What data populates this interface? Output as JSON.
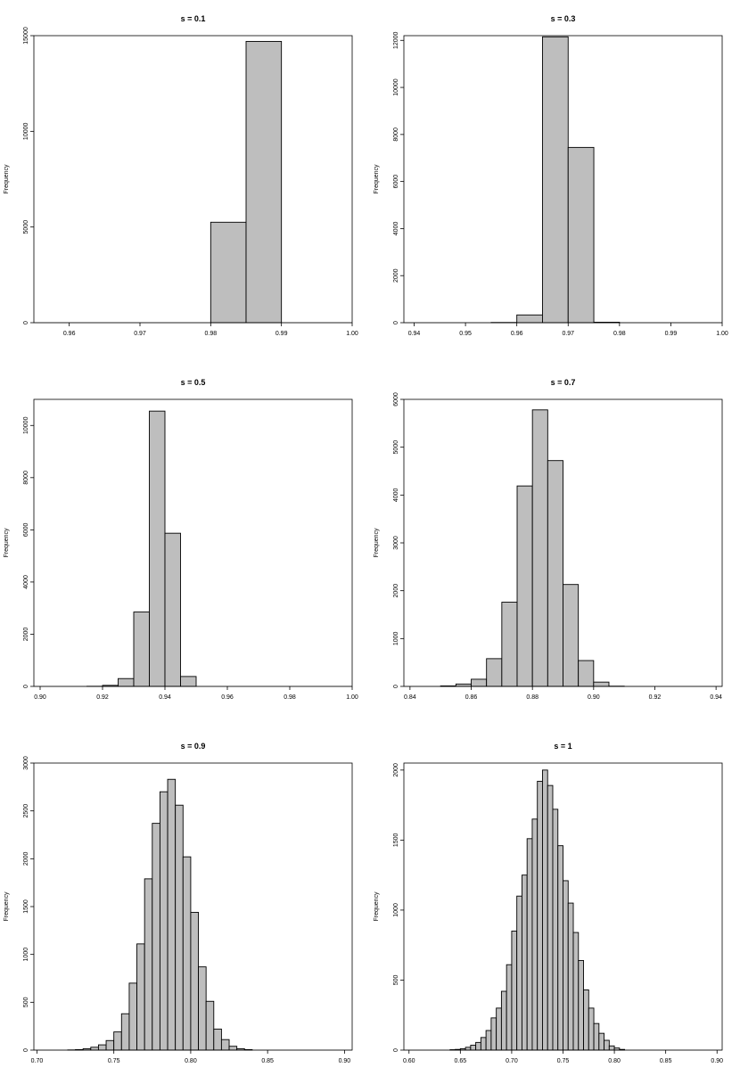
{
  "chart_data": [
    {
      "type": "bar",
      "title": "s = 0.1",
      "ylabel": "Frequency",
      "xlim": [
        0.955,
        1.0
      ],
      "ylim": [
        0,
        15000
      ],
      "xticks": [
        0.96,
        0.97,
        0.98,
        0.99,
        1.0
      ],
      "xtick_labels": [
        "0.96",
        "0.97",
        "0.98",
        "0.99",
        "1.00"
      ],
      "yticks": [
        0,
        5000,
        10000,
        15000
      ],
      "ytick_labels": [
        "0",
        "5000",
        "10000",
        "15000"
      ],
      "bin_width": 0.005,
      "bins": [
        [
          0.98,
          0.985
        ],
        [
          0.985,
          0.99
        ]
      ],
      "values": [
        5250,
        14700
      ]
    },
    {
      "type": "bar",
      "title": "s = 0.3",
      "ylabel": "Frequency",
      "xlim": [
        0.938,
        1.0
      ],
      "ylim": [
        0,
        12200
      ],
      "xticks": [
        0.94,
        0.95,
        0.96,
        0.97,
        0.98,
        0.99,
        1.0
      ],
      "xtick_labels": [
        "0.94",
        "0.95",
        "0.96",
        "0.97",
        "0.98",
        "0.99",
        "1.00"
      ],
      "yticks": [
        0,
        2000,
        4000,
        6000,
        8000,
        10000,
        12000
      ],
      "ytick_labels": [
        "0",
        "2000",
        "4000",
        "6000",
        "8000",
        "10000",
        "12000"
      ],
      "bin_width": 0.005,
      "bins": [
        [
          0.955,
          0.96
        ],
        [
          0.96,
          0.965
        ],
        [
          0.965,
          0.97
        ],
        [
          0.97,
          0.975
        ],
        [
          0.975,
          0.98
        ]
      ],
      "values": [
        10,
        330,
        12150,
        7450,
        20
      ]
    },
    {
      "type": "bar",
      "title": "s = 0.5",
      "ylabel": "Frequency",
      "xlim": [
        0.898,
        1.0
      ],
      "ylim": [
        0,
        11000
      ],
      "xticks": [
        0.9,
        0.92,
        0.94,
        0.96,
        0.98,
        1.0
      ],
      "xtick_labels": [
        "0.90",
        "0.92",
        "0.94",
        "0.96",
        "0.98",
        "1.00"
      ],
      "yticks": [
        0,
        2000,
        4000,
        6000,
        8000,
        10000
      ],
      "ytick_labels": [
        "0",
        "2000",
        "4000",
        "6000",
        "8000",
        "10000"
      ],
      "bin_width": 0.005,
      "bins": [
        [
          0.915,
          0.92
        ],
        [
          0.92,
          0.925
        ],
        [
          0.925,
          0.93
        ],
        [
          0.93,
          0.935
        ],
        [
          0.935,
          0.94
        ],
        [
          0.94,
          0.945
        ],
        [
          0.945,
          0.95
        ]
      ],
      "values": [
        5,
        40,
        300,
        2850,
        10550,
        5870,
        380
      ]
    },
    {
      "type": "bar",
      "title": "s = 0.7",
      "ylabel": "Frequency",
      "xlim": [
        0.838,
        0.942
      ],
      "ylim": [
        0,
        6000
      ],
      "xticks": [
        0.84,
        0.86,
        0.88,
        0.9,
        0.92,
        0.94
      ],
      "xtick_labels": [
        "0.84",
        "0.86",
        "0.88",
        "0.90",
        "0.92",
        "0.94"
      ],
      "yticks": [
        0,
        1000,
        2000,
        3000,
        4000,
        5000,
        6000
      ],
      "ytick_labels": [
        "0",
        "1000",
        "2000",
        "3000",
        "4000",
        "5000",
        "6000"
      ],
      "bin_width": 0.005,
      "bins": [
        [
          0.85,
          0.855
        ],
        [
          0.855,
          0.86
        ],
        [
          0.86,
          0.865
        ],
        [
          0.865,
          0.87
        ],
        [
          0.87,
          0.875
        ],
        [
          0.875,
          0.88
        ],
        [
          0.88,
          0.885
        ],
        [
          0.885,
          0.89
        ],
        [
          0.89,
          0.895
        ],
        [
          0.895,
          0.9
        ],
        [
          0.9,
          0.905
        ],
        [
          0.905,
          0.91
        ]
      ],
      "values": [
        10,
        50,
        150,
        580,
        1760,
        4190,
        5780,
        4720,
        2130,
        540,
        90,
        5
      ]
    },
    {
      "type": "bar",
      "title": "s = 0.9",
      "ylabel": "Frequency",
      "xlim": [
        0.698,
        0.905
      ],
      "ylim": [
        0,
        3000
      ],
      "xticks": [
        0.7,
        0.75,
        0.8,
        0.85,
        0.9
      ],
      "xtick_labels": [
        "0.70",
        "0.75",
        "0.80",
        "0.85",
        "0.90"
      ],
      "yticks": [
        0,
        500,
        1000,
        1500,
        2000,
        2500,
        3000
      ],
      "ytick_labels": [
        "0",
        "500",
        "1000",
        "1500",
        "2000",
        "2500",
        "3000"
      ],
      "bin_width": 0.005,
      "bin_start": 0.72,
      "values": [
        2,
        5,
        15,
        30,
        55,
        100,
        190,
        380,
        700,
        1110,
        1790,
        2370,
        2700,
        2830,
        2560,
        2020,
        1440,
        870,
        510,
        220,
        110,
        40,
        15,
        5
      ]
    },
    {
      "type": "bar",
      "title": "s = 1",
      "ylabel": "Frequency",
      "xlim": [
        0.595,
        0.905
      ],
      "ylim": [
        0,
        2050
      ],
      "xticks": [
        0.6,
        0.65,
        0.7,
        0.75,
        0.8,
        0.85,
        0.9
      ],
      "xtick_labels": [
        "0.60",
        "0.65",
        "0.70",
        "0.75",
        "0.80",
        "0.85",
        "0.90"
      ],
      "yticks": [
        0,
        500,
        1000,
        1500,
        2000
      ],
      "ytick_labels": [
        "0",
        "500",
        "1000",
        "1500",
        "2000"
      ],
      "bin_width": 0.005,
      "bin_start": 0.64,
      "values": [
        3,
        5,
        10,
        20,
        35,
        55,
        90,
        140,
        230,
        300,
        420,
        610,
        850,
        1100,
        1250,
        1510,
        1650,
        1920,
        2000,
        1890,
        1720,
        1460,
        1210,
        1050,
        840,
        640,
        430,
        300,
        190,
        120,
        70,
        30,
        15,
        5
      ]
    }
  ]
}
